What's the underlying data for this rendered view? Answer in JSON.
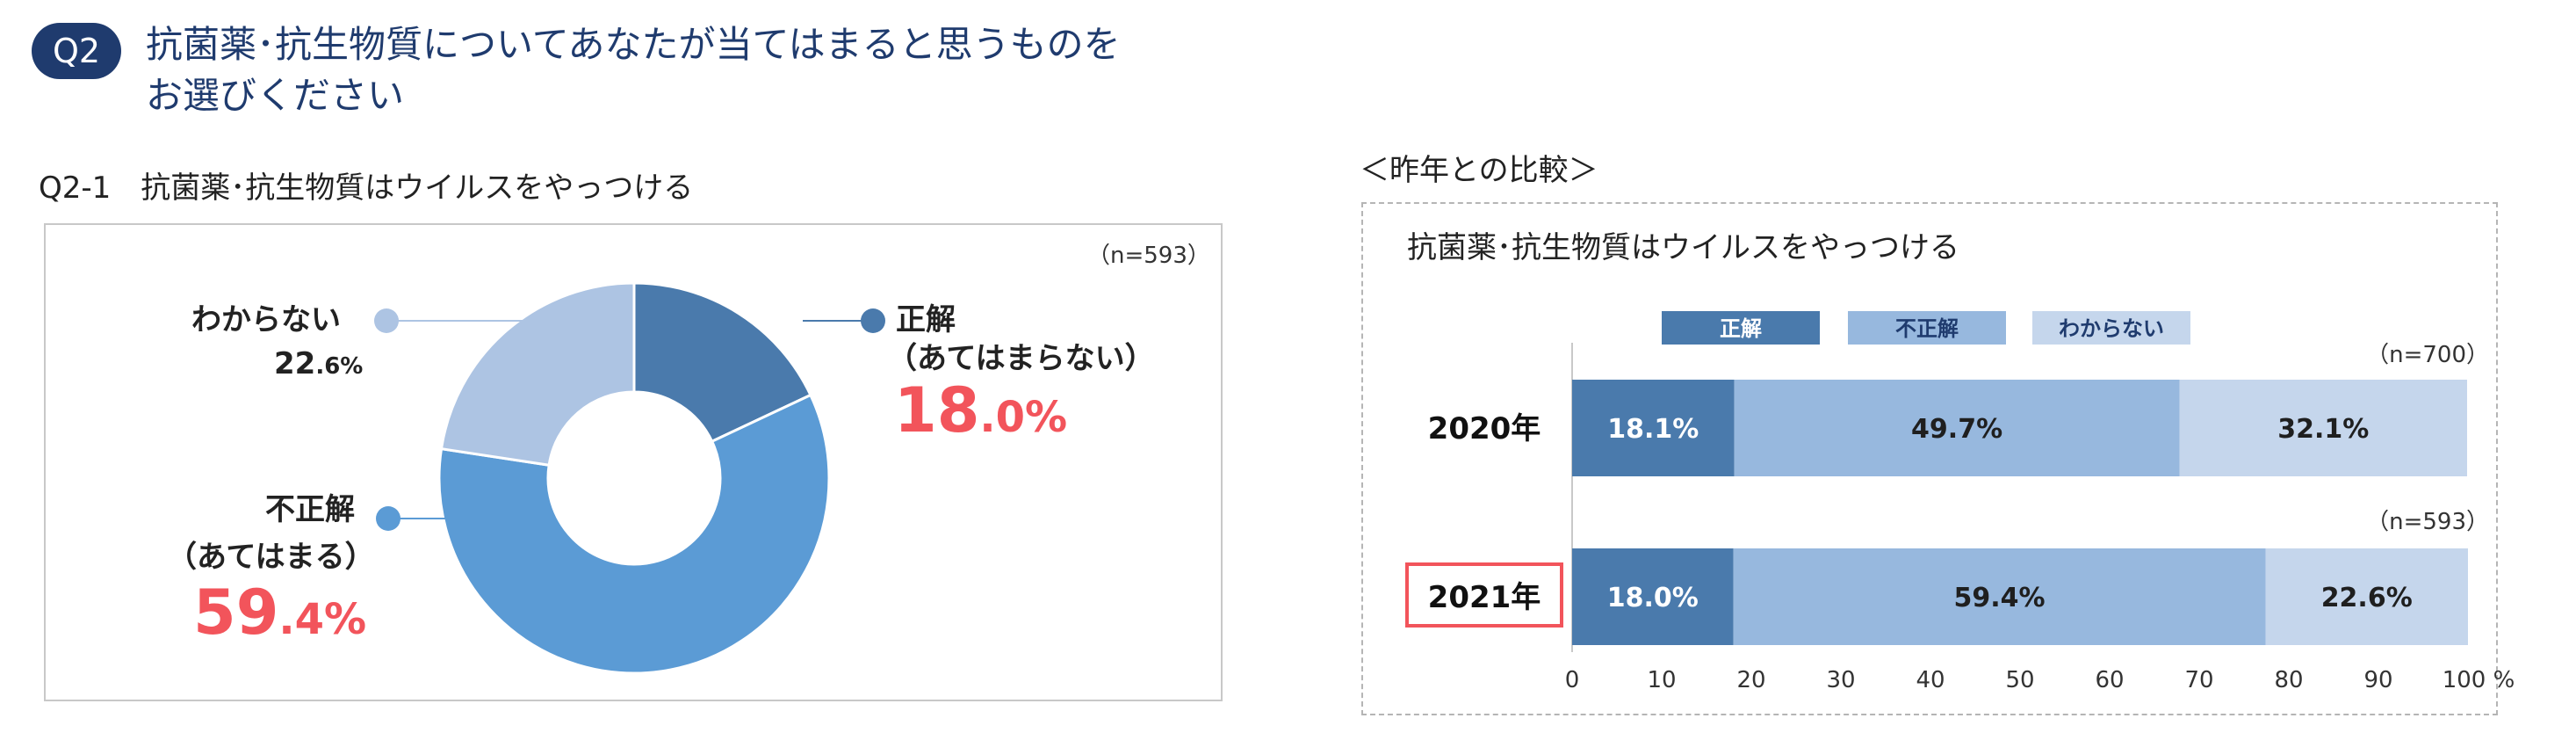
{
  "header": {
    "badge": "Q2",
    "title_line1": "抗菌薬･抗生物質についてあなたが当てはまると思うものを",
    "title_line2": "お選びください"
  },
  "left": {
    "subtitle": "Q2-1　抗菌薬･抗生物質はウイルスをやっつける",
    "n_label": "（n=593）"
  },
  "right": {
    "comparison_title": "＜昨年との比較＞",
    "chart_title": "抗菌薬･抗生物質はウイルスをやっつける"
  },
  "colors": {
    "correct": "#4a7aac",
    "incorrect": "#5b9bd5",
    "unknown": "#adc4e3",
    "bar_correct": "#4a7aac",
    "bar_incorrect": "#97b8de",
    "bar_unknown": "#c5d6ec",
    "red": "#f2545b",
    "navy": "#1f3b6e"
  },
  "chart_data": [
    {
      "type": "pie",
      "subtitle": "Q2-1　抗菌薬･抗生物質はウイルスをやっつける",
      "n": "（n=593）",
      "slices": [
        {
          "label": "正解",
          "sublabel": "（あてはまらない）",
          "value": 18.0,
          "int": "18",
          "dec": ".0%",
          "color": "#4a7aac"
        },
        {
          "label": "不正解",
          "sublabel": "（あてはまる）",
          "value": 59.4,
          "int": "59",
          "dec": ".4%",
          "color": "#5b9bd5"
        },
        {
          "label": "わからない",
          "sublabel": "",
          "value": 22.6,
          "int": "22",
          "dec": ".6%",
          "color": "#adc4e3"
        }
      ]
    },
    {
      "type": "bar",
      "orientation": "horizontal-stacked",
      "title": "抗菌薬･抗生物質はウイルスをやっつける",
      "legend": [
        "正解",
        "不正解",
        "わからない"
      ],
      "xlim": [
        0,
        100
      ],
      "xticks": [
        "0",
        "10",
        "20",
        "30",
        "40",
        "50",
        "60",
        "70",
        "80",
        "90",
        "100 %"
      ],
      "rows": [
        {
          "category": "2020年",
          "n": "（n=700）",
          "values": [
            18.1,
            49.7,
            32.1
          ],
          "labels": [
            "18.1%",
            "49.7%",
            "32.1%"
          ],
          "highlight": false
        },
        {
          "category": "2021年",
          "n": "（n=593）",
          "values": [
            18.0,
            59.4,
            22.6
          ],
          "labels": [
            "18.0%",
            "59.4%",
            "22.6%"
          ],
          "highlight": true
        }
      ]
    }
  ]
}
